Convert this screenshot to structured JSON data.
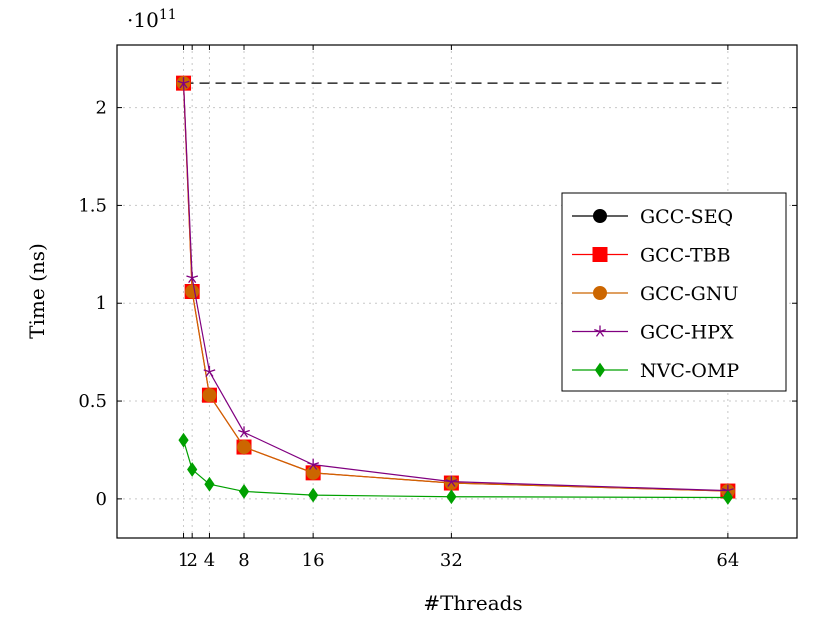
{
  "chart_data": {
    "type": "line",
    "title": "",
    "xlabel": "#Threads",
    "ylabel": "Time (ns)",
    "y_exponent_label": "·10",
    "y_exponent_power": "11",
    "x_ticks": [
      1,
      2,
      4,
      8,
      16,
      32,
      64
    ],
    "x_tick_labels": [
      "1",
      "2",
      "4",
      "8",
      "16",
      "32",
      "64"
    ],
    "y_ticks": [
      0,
      0.5,
      1,
      1.5,
      2
    ],
    "y_tick_labels": [
      "0",
      "0.5",
      "1",
      "1.5",
      "2"
    ],
    "xlim": [
      -6.7,
      72
    ],
    "ylim": [
      -0.2,
      2.32
    ],
    "y_unit_multiplier": 100000000000.0,
    "grid": true,
    "legend_position": "right",
    "series": [
      {
        "name": "GCC-SEQ",
        "color": "#000000",
        "marker": "circle",
        "dashed_reference": true,
        "x": [
          1,
          64
        ],
        "y": [
          2.125,
          2.125
        ]
      },
      {
        "name": "GCC-TBB",
        "color": "#ff0000",
        "marker": "square",
        "x": [
          1,
          2,
          4,
          8,
          16,
          32,
          64
        ],
        "y": [
          2.125,
          1.06,
          0.53,
          0.265,
          0.133,
          0.081,
          0.04
        ]
      },
      {
        "name": "GCC-GNU",
        "color": "#cc6600",
        "marker": "circle",
        "x": [
          1,
          2,
          4,
          8,
          16,
          32,
          64
        ],
        "y": [
          2.125,
          1.06,
          0.53,
          0.265,
          0.133,
          0.081,
          0.04
        ]
      },
      {
        "name": "GCC-HPX",
        "color": "#800080",
        "marker": "star",
        "x": [
          1,
          2,
          4,
          8,
          16,
          32,
          64
        ],
        "y": [
          2.125,
          1.13,
          0.65,
          0.34,
          0.175,
          0.088,
          0.042
        ]
      },
      {
        "name": "NVC-OMP",
        "color": "#00a000",
        "marker": "diamond",
        "x": [
          1,
          2,
          4,
          8,
          16,
          32,
          64
        ],
        "y": [
          0.3,
          0.15,
          0.075,
          0.038,
          0.019,
          0.011,
          0.007
        ]
      }
    ]
  }
}
